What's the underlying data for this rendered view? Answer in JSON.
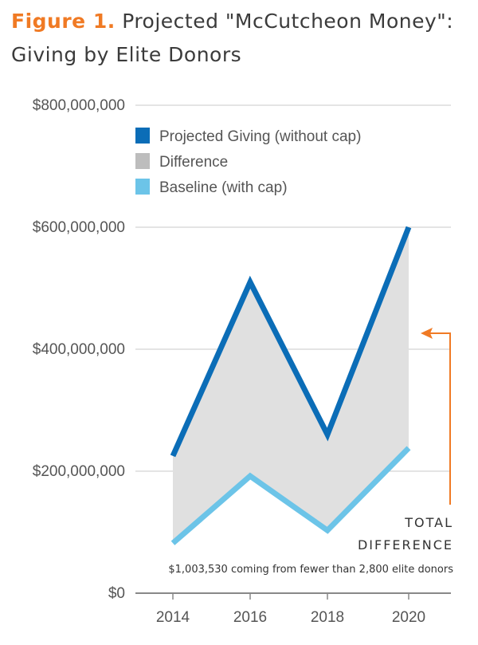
{
  "title": {
    "prefix": "Figure 1.",
    "text": "Projected \"McCutcheon Money\": Giving by Elite Donors"
  },
  "colors": {
    "projected": "#0b6db7",
    "difference": "#e0e0e0",
    "difference_legend": "#bdbdbd",
    "baseline": "#6cc4e8",
    "accent": "#f07a24",
    "grid": "#c8c8c8",
    "axis": "#888888"
  },
  "chart_data": {
    "type": "line",
    "x": [
      2014,
      2016,
      2018,
      2020
    ],
    "x_tick_labels": [
      "2014",
      "2016",
      "2018",
      "2020"
    ],
    "series": [
      {
        "name": "Projected Giving (without cap)",
        "values": [
          225000000,
          510000000,
          260000000,
          600000000
        ]
      },
      {
        "name": "Baseline (with cap)",
        "values": [
          82000000,
          192000000,
          103000000,
          238000000
        ]
      }
    ],
    "difference_label": "Difference",
    "ylim": [
      0,
      800000000
    ],
    "y_ticks": [
      0,
      200000000,
      400000000,
      600000000,
      800000000
    ],
    "y_tick_labels": [
      "$0",
      "$200,000,000",
      "$400,000,000",
      "$600,000,000",
      "$800,000,000"
    ],
    "grid": true,
    "legend_position": "top-left",
    "annotation": {
      "line1": "TOTAL",
      "line2": "DIFFERENCE",
      "note": "$1,003,530 coming from fewer than 2,800 elite donors"
    }
  }
}
